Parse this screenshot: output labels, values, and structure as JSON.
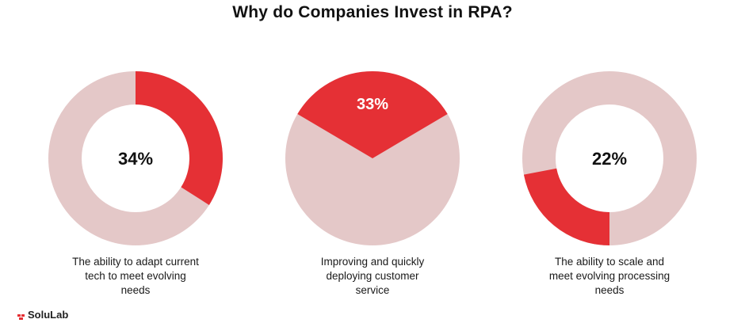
{
  "page": {
    "title": "Why do Companies Invest in RPA?"
  },
  "colors": {
    "accent": "#e53035",
    "track": "#e4c8c8",
    "center_text": "#111111"
  },
  "chart_data": [
    {
      "type": "pie",
      "style": "donut",
      "value": 34,
      "label": "34%",
      "start": "top",
      "direction": "clockwise",
      "caption": "The ability to adapt current\ntech to meet evolving\nneeds"
    },
    {
      "type": "pie",
      "style": "pie",
      "value": 33,
      "label": "33%",
      "start": "centered-top",
      "caption": "Improving and quickly\ndeploying customer\nservice"
    },
    {
      "type": "pie",
      "style": "donut",
      "value": 22,
      "label": "22%",
      "start": "bottom",
      "direction": "clockwise",
      "caption": "The ability to scale and\nmeet evolving processing\nneeds"
    }
  ],
  "brand": {
    "name": "SoluLab"
  }
}
